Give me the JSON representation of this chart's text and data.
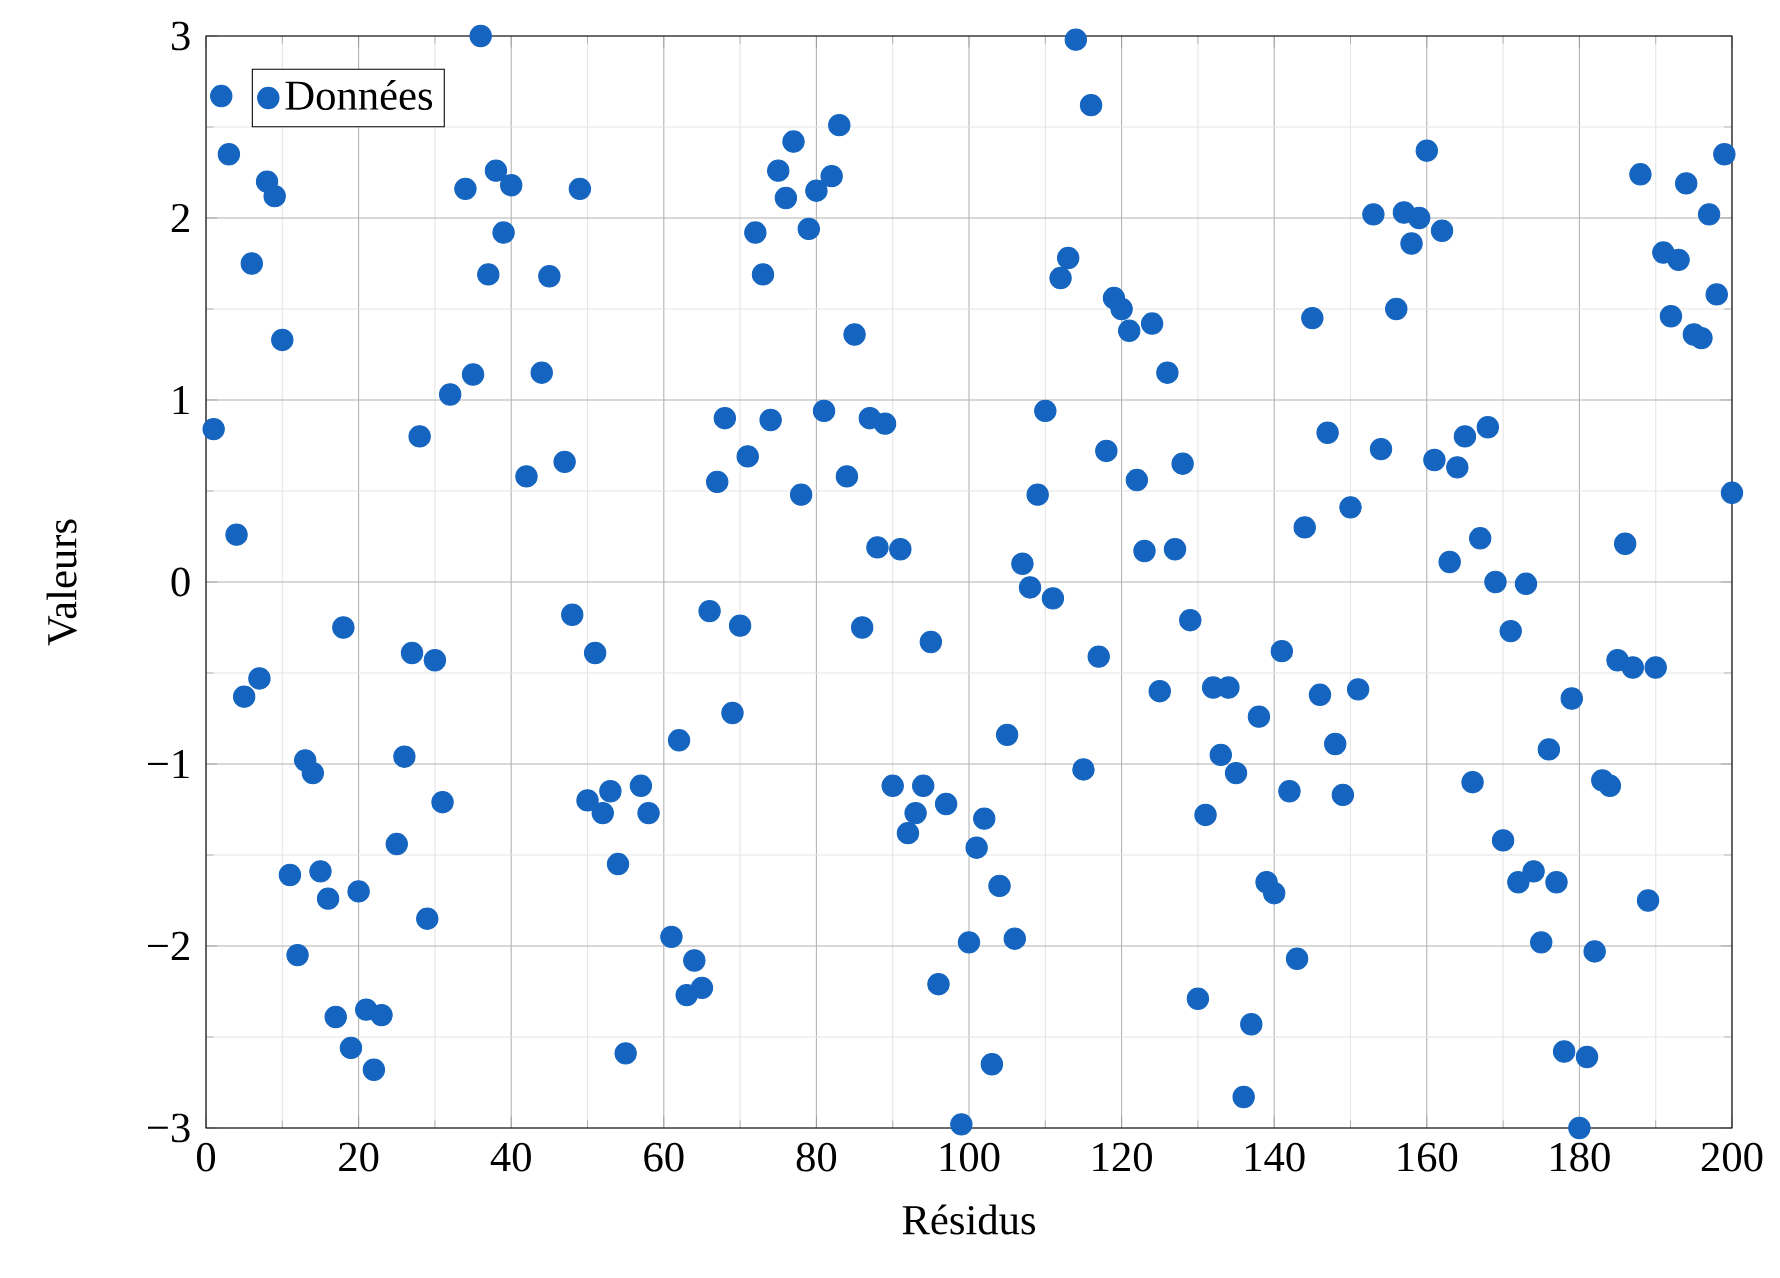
{
  "chart_data": {
    "type": "scatter",
    "xlabel": "Résidus",
    "ylabel": "Valeurs",
    "x": [
      1,
      2,
      3,
      4,
      5,
      6,
      7,
      8,
      9,
      10,
      11,
      12,
      13,
      14,
      15,
      16,
      17,
      18,
      19,
      20,
      21,
      22,
      23,
      25,
      26,
      27,
      28,
      29,
      30,
      31,
      32,
      34,
      35,
      36,
      37,
      38,
      39,
      40,
      42,
      44,
      45,
      47,
      48,
      49,
      50,
      51,
      52,
      53,
      54,
      55,
      57,
      58,
      61,
      62,
      63,
      64,
      65,
      66,
      67,
      68,
      69,
      70,
      71,
      72,
      73,
      74,
      75,
      76,
      77,
      78,
      79,
      80,
      81,
      82,
      83,
      84,
      85,
      86,
      87,
      88,
      89,
      90,
      91,
      92,
      93,
      94,
      95,
      96,
      97,
      99,
      100,
      101,
      102,
      103,
      104,
      105,
      106,
      107,
      108,
      109,
      110,
      111,
      112,
      113,
      114,
      115,
      116,
      117,
      118,
      119,
      120,
      121,
      122,
      123,
      124,
      125,
      126,
      127,
      128,
      129,
      130,
      131,
      132,
      133,
      134,
      135,
      136,
      137,
      138,
      139,
      140,
      141,
      142,
      143,
      144,
      145,
      146,
      147,
      148,
      149,
      150,
      151,
      153,
      154,
      156,
      157,
      158,
      159,
      160,
      161,
      162,
      163,
      164,
      165,
      166,
      167,
      168,
      169,
      170,
      171,
      172,
      173,
      174,
      175,
      176,
      177,
      178,
      179,
      180,
      181,
      182,
      183,
      184,
      185,
      186,
      187,
      188,
      189,
      190,
      191,
      192,
      193,
      194,
      195,
      196,
      197,
      198,
      199,
      200
    ],
    "series": [
      {
        "name": "Données",
        "color": "#1565c0",
        "values": [
          0.84,
          2.67,
          2.35,
          0.26,
          -0.63,
          1.75,
          -0.53,
          2.2,
          2.12,
          1.33,
          -1.61,
          -2.05,
          -0.98,
          -1.05,
          -1.59,
          -1.74,
          -2.39,
          -0.25,
          -2.56,
          -1.7,
          -2.35,
          -2.68,
          -2.38,
          -1.44,
          -0.96,
          -0.39,
          0.8,
          -1.85,
          -0.43,
          -1.21,
          1.03,
          2.16,
          1.14,
          3.0,
          1.69,
          2.26,
          1.92,
          2.18,
          0.58,
          1.15,
          1.68,
          0.66,
          -0.18,
          2.16,
          -1.2,
          -0.39,
          -1.27,
          -1.15,
          -1.55,
          -2.59,
          -1.12,
          -1.27,
          -1.95,
          -0.87,
          -2.27,
          -2.08,
          -2.23,
          -0.16,
          0.55,
          0.9,
          -0.72,
          -0.24,
          0.69,
          1.92,
          1.69,
          0.89,
          2.26,
          2.11,
          2.42,
          0.48,
          1.94,
          2.15,
          0.94,
          2.23,
          2.51,
          0.58,
          1.36,
          -0.25,
          0.9,
          0.19,
          0.87,
          -1.12,
          0.18,
          -1.38,
          -1.27,
          -1.12,
          -0.33,
          -2.21,
          -1.22,
          -2.98,
          -1.98,
          -1.46,
          -1.3,
          -2.65,
          -1.67,
          -0.84,
          -1.96,
          0.1,
          -0.03,
          0.48,
          0.94,
          -0.09,
          1.67,
          1.78,
          2.98,
          -1.03,
          2.62,
          -0.41,
          0.72,
          1.56,
          1.5,
          1.38,
          0.56,
          0.17,
          1.42,
          -0.6,
          1.15,
          0.18,
          0.65,
          -0.21,
          -2.29,
          -1.28,
          -0.58,
          -0.95,
          -0.58,
          -1.05,
          -2.83,
          -2.43,
          -0.74,
          -1.65,
          -1.71,
          -0.38,
          -1.15,
          -2.07,
          0.3,
          1.45,
          -0.62,
          0.82,
          -0.89,
          -1.17,
          0.41,
          -0.59,
          2.02,
          0.73,
          1.5,
          2.03,
          1.86,
          2.0,
          2.37,
          0.67,
          1.93,
          0.11,
          0.63,
          0.8,
          -1.1,
          0.24,
          0.85,
          0.0,
          -1.42,
          -0.27,
          -1.65,
          -0.01,
          -1.59,
          -1.98,
          -0.92,
          -1.65,
          -2.58,
          -0.64,
          -3.0,
          -2.61,
          -2.03,
          -1.09,
          -1.12,
          -0.43,
          0.21,
          -0.47,
          2.24,
          -1.75,
          -0.47,
          1.81,
          1.46,
          1.77,
          2.19,
          1.36,
          1.34,
          2.02,
          1.58,
          2.35,
          0.49
        ]
      }
    ],
    "xlim": [
      0,
      200
    ],
    "xticks": [
      0,
      20,
      40,
      60,
      80,
      100,
      120,
      140,
      160,
      180,
      200
    ],
    "ylim": [
      -3,
      3
    ],
    "yticks": [
      {
        "value": -3,
        "label": "−3"
      },
      {
        "value": -2,
        "label": "−2"
      },
      {
        "value": -1,
        "label": "−1"
      },
      0,
      1,
      2,
      3
    ],
    "grid": true,
    "legend": "top left",
    "marker": "circle"
  }
}
